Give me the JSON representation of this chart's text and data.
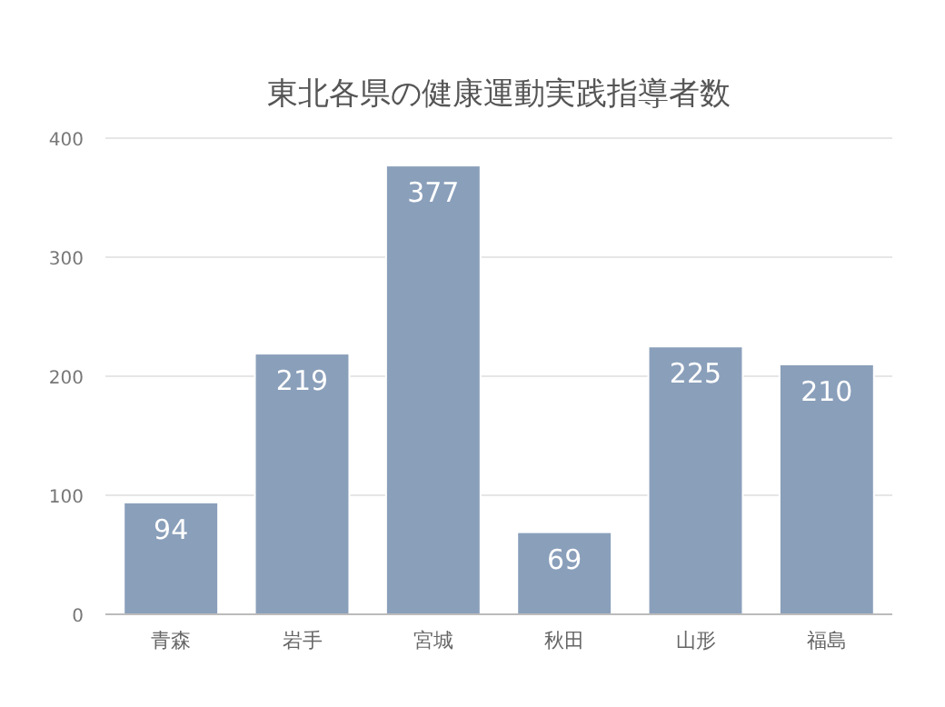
{
  "chart_data": {
    "type": "bar",
    "title": "東北各県の健康運動実践指導者数",
    "categories": [
      "青森",
      "岩手",
      "宮城",
      "秋田",
      "山形",
      "福島"
    ],
    "values": [
      94,
      219,
      377,
      69,
      225,
      210
    ],
    "color": "#8a9fba",
    "ylim": [
      0,
      400
    ],
    "yticks": [
      0,
      100,
      200,
      300,
      400
    ],
    "grid": "y",
    "data_labels": true
  }
}
